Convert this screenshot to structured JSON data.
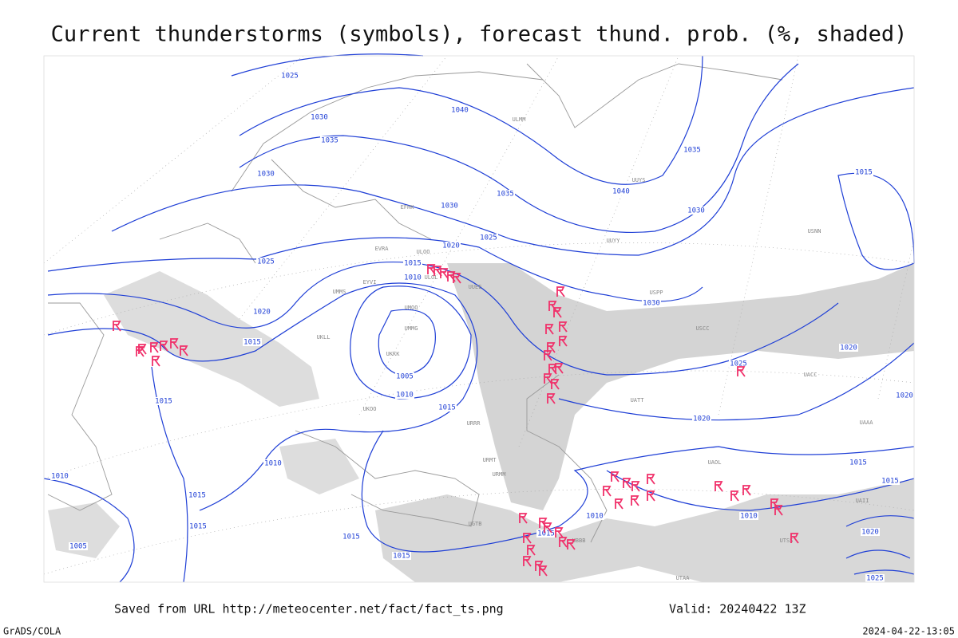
{
  "title": "Current thunderstorms (symbols), forecast thund. prob. (%, shaded)",
  "footer": {
    "source": "Saved from URL http://meteocenter.net/fact/fact_ts.png",
    "valid": "Valid: 20240422 13Z",
    "software": "GrADS/COLA",
    "timestamp": "2024-04-22-13:05"
  },
  "isobar_labels": [
    1025,
    1030,
    1035,
    1030,
    1040,
    1035,
    1030,
    1025,
    1020,
    1025,
    1015,
    1010,
    1020,
    1015,
    1005,
    1010,
    1015,
    1015,
    1010,
    1010,
    1015,
    1015,
    1005,
    1015,
    1015,
    1015,
    1010,
    1040,
    1035,
    1030,
    1030,
    1025,
    1020,
    1015,
    1020,
    1020,
    1015,
    1010,
    1015,
    1020,
    1025
  ],
  "stations": [
    "ULOO",
    "ULOL",
    "UUEE",
    "UUYY",
    "UMMG",
    "UMOO",
    "UKKK",
    "UKLL",
    "UKOO",
    "URRR",
    "URMT",
    "URMM",
    "UGTB",
    "UBBB",
    "ULMM",
    "UUYS",
    "USPP",
    "USCC",
    "USNN",
    "UACC",
    "UAII",
    "UATT",
    "UTAA",
    "UTSS",
    "UAOL",
    "UAAA",
    "EVRA",
    "EYVI",
    "EFHK",
    "UMMS"
  ]
}
